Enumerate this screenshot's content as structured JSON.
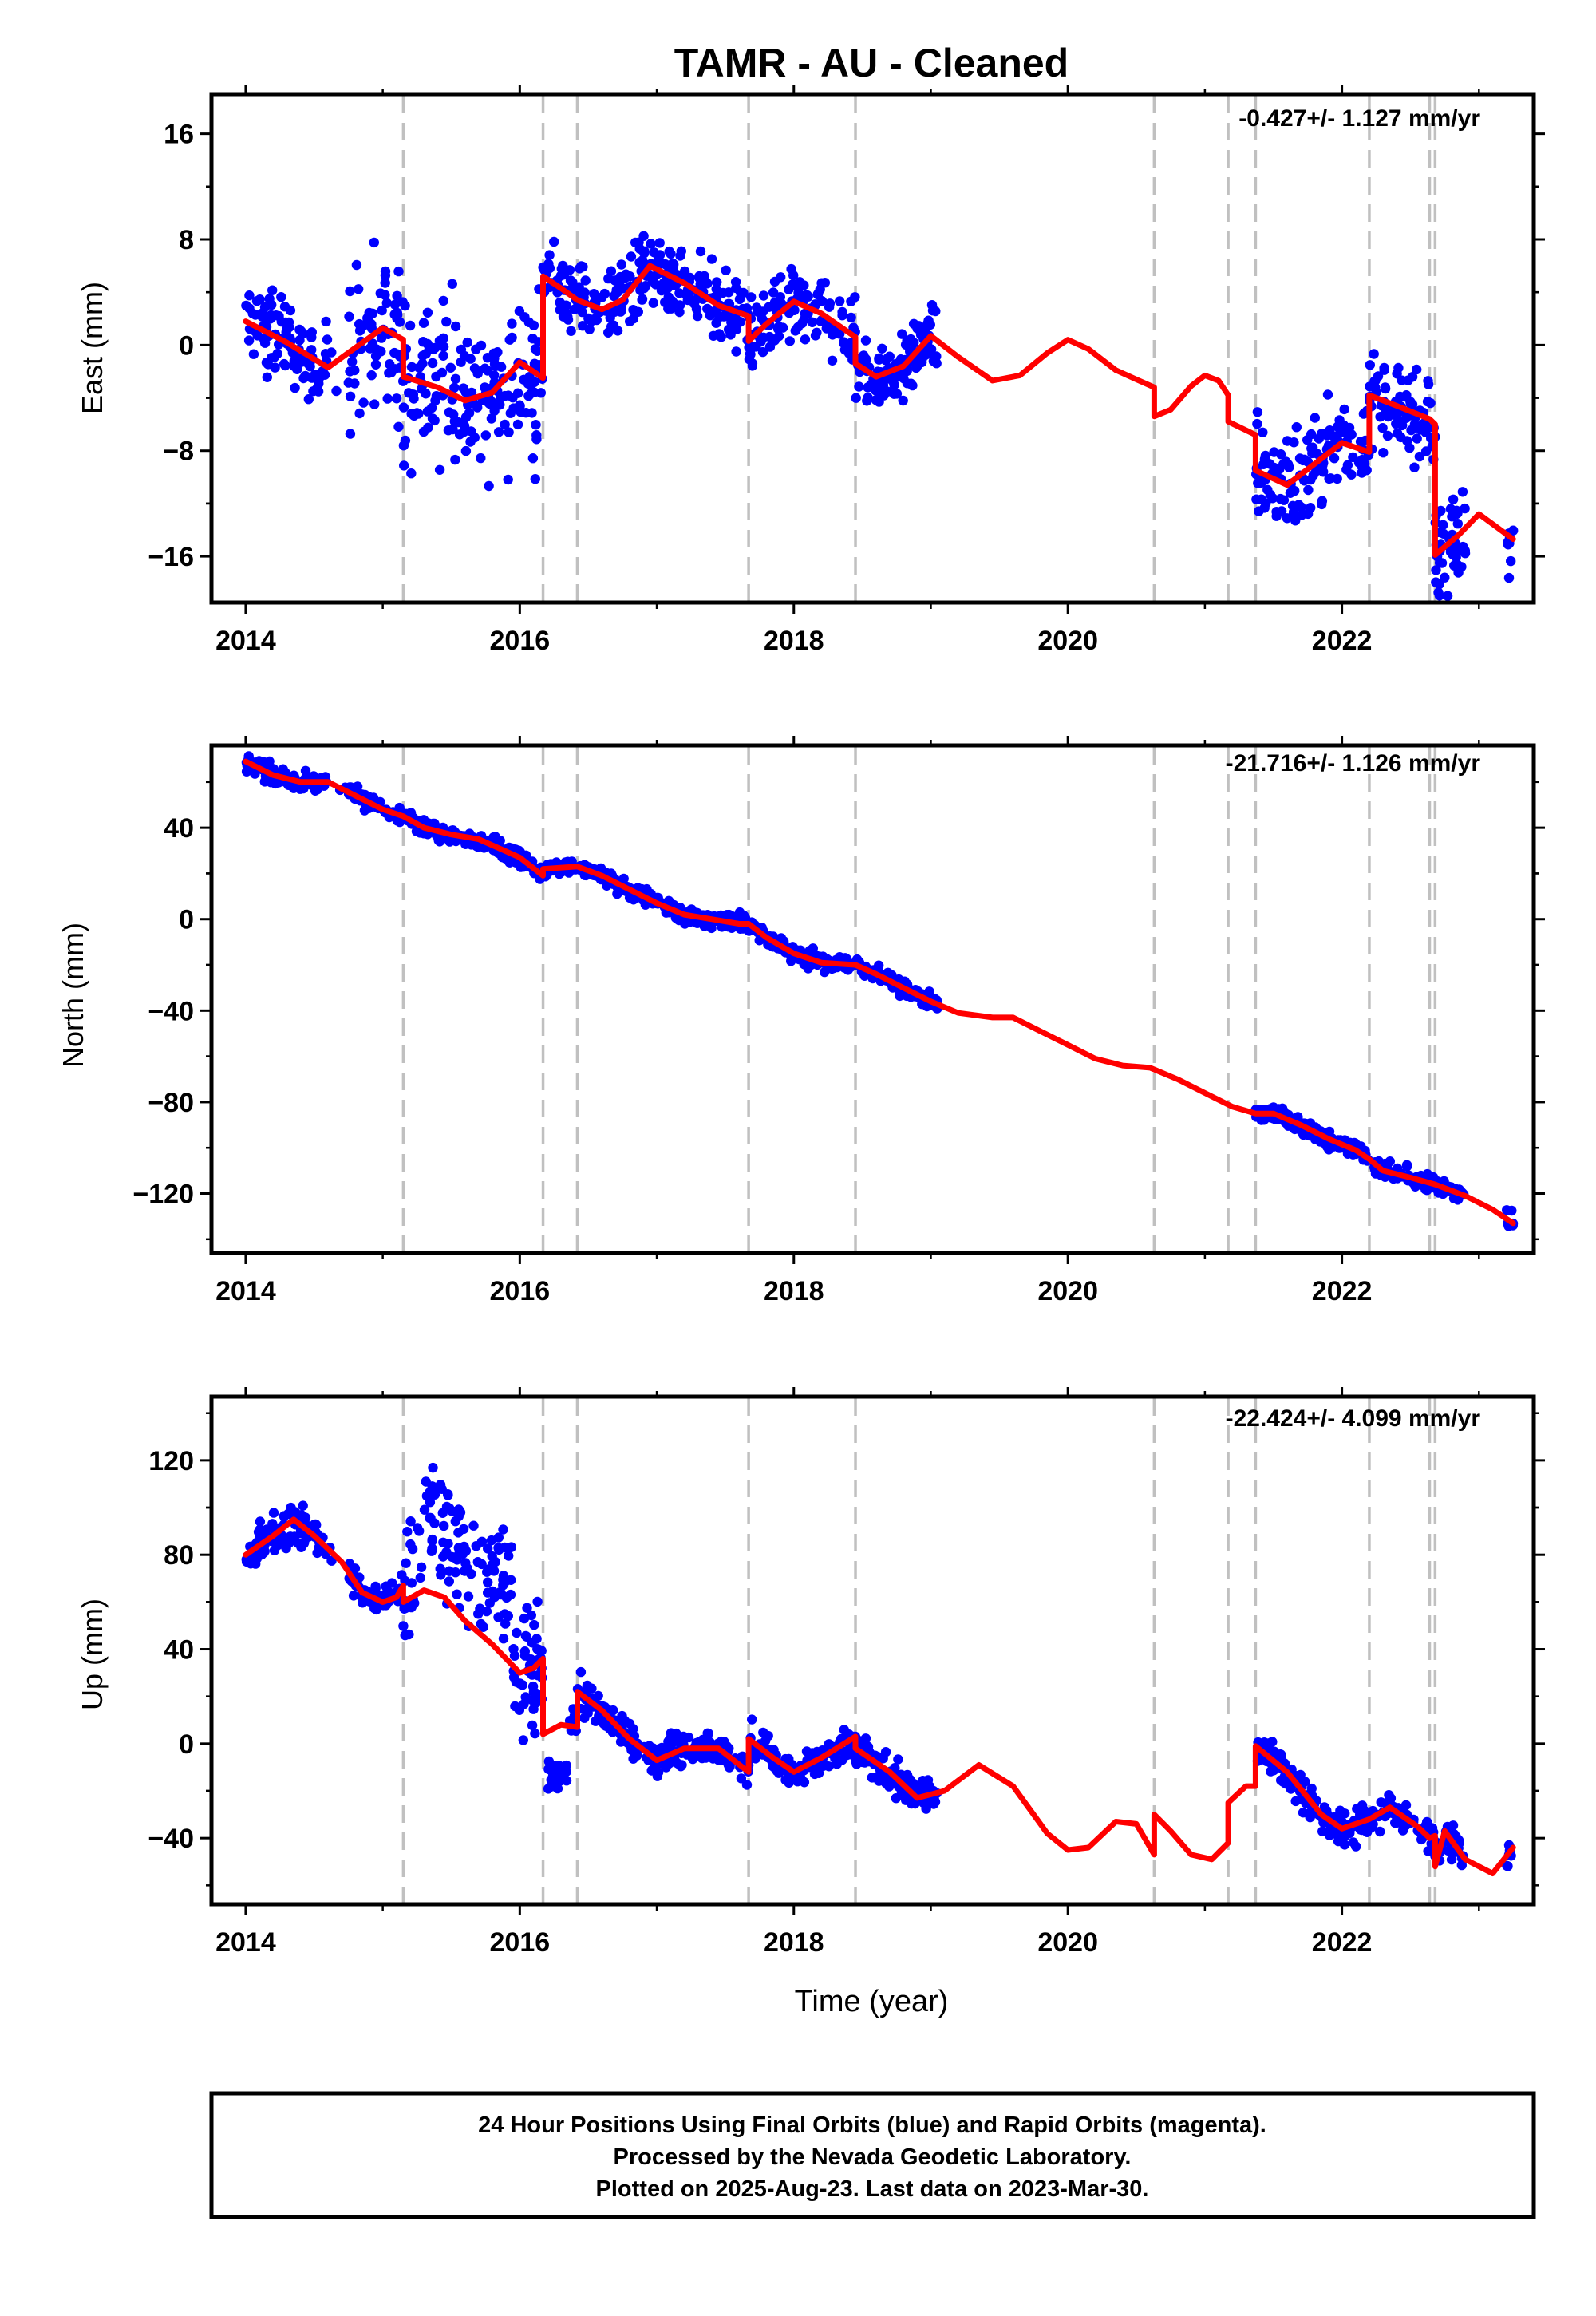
{
  "title": "TAMR  - AU - Cleaned",
  "xlabel": "Time (year)",
  "footer": [
    "24 Hour Positions Using Final Orbits (blue) and Rapid Orbits (magenta).",
    "Processed by the Nevada Geodetic Laboratory.",
    "Plotted on 2025-Aug-23. Last data on 2023-Mar-30."
  ],
  "colors": {
    "points": "#0000ff",
    "model": "#ff0000",
    "steps": "#c0c0c0",
    "frame": "#000000"
  },
  "chart_data": [
    {
      "type": "scatter",
      "panel": "east",
      "ylabel": "East (mm)",
      "rate": "-0.427+/- 1.127 mm/yr",
      "xlim": [
        2013.75,
        2023.4
      ],
      "ylim": [
        -19.5,
        19
      ],
      "xticks": [
        2014,
        2016,
        2018,
        2020,
        2022
      ],
      "yticks": [
        -16,
        -8,
        0,
        8,
        16
      ],
      "ytick_labels": [
        "−16",
        "−8",
        "0",
        "8",
        "16"
      ],
      "grid": false,
      "steps": [
        2015.15,
        2016.17,
        2016.42,
        2017.67,
        2018.45,
        2020.63,
        2021.17,
        2021.37,
        2022.2,
        2022.64,
        2022.68
      ],
      "model": [
        [
          2014.0,
          1.8
        ],
        [
          2014.3,
          0.2
        ],
        [
          2014.6,
          -1.7
        ],
        [
          2014.8,
          -0.2
        ],
        [
          2015.0,
          1.3
        ],
        [
          2015.15,
          0.4
        ],
        [
          2015.15,
          -2.4
        ],
        [
          2015.4,
          -3.2
        ],
        [
          2015.6,
          -4.2
        ],
        [
          2015.8,
          -3.6
        ],
        [
          2016.0,
          -1.3
        ],
        [
          2016.17,
          -2.5
        ],
        [
          2016.17,
          5.2
        ],
        [
          2016.3,
          4.3
        ],
        [
          2016.42,
          3.4
        ],
        [
          2016.6,
          2.7
        ],
        [
          2016.75,
          3.4
        ],
        [
          2016.95,
          6.0
        ],
        [
          2017.2,
          4.7
        ],
        [
          2017.45,
          3.0
        ],
        [
          2017.67,
          2.2
        ],
        [
          2017.67,
          0.3
        ],
        [
          2017.8,
          1.6
        ],
        [
          2018.0,
          3.3
        ],
        [
          2018.2,
          2.4
        ],
        [
          2018.45,
          0.6
        ],
        [
          2018.45,
          -1.4
        ],
        [
          2018.6,
          -2.4
        ],
        [
          2018.8,
          -1.6
        ],
        [
          2019.0,
          0.7
        ],
        [
          2019.2,
          -0.9
        ],
        [
          2019.45,
          -2.7
        ],
        [
          2019.65,
          -2.3
        ],
        [
          2019.85,
          -0.6
        ],
        [
          2020.0,
          0.4
        ],
        [
          2020.15,
          -0.3
        ],
        [
          2020.35,
          -1.9
        ],
        [
          2020.5,
          -2.6
        ],
        [
          2020.63,
          -3.2
        ],
        [
          2020.63,
          -5.4
        ],
        [
          2020.75,
          -4.9
        ],
        [
          2020.9,
          -3.1
        ],
        [
          2021.0,
          -2.3
        ],
        [
          2021.1,
          -2.7
        ],
        [
          2021.17,
          -3.8
        ],
        [
          2021.17,
          -5.8
        ],
        [
          2021.37,
          -6.8
        ],
        [
          2021.37,
          -9.5
        ],
        [
          2021.6,
          -10.6
        ],
        [
          2021.8,
          -9.0
        ],
        [
          2022.0,
          -7.4
        ],
        [
          2022.2,
          -8.1
        ],
        [
          2022.2,
          -3.8
        ],
        [
          2022.4,
          -4.6
        ],
        [
          2022.64,
          -5.6
        ],
        [
          2022.68,
          -6.0
        ],
        [
          2022.68,
          -15.9
        ],
        [
          2022.85,
          -14.4
        ],
        [
          2023.0,
          -12.8
        ],
        [
          2023.25,
          -14.7
        ]
      ]
    },
    {
      "type": "scatter",
      "panel": "north",
      "ylabel": "North (mm)",
      "rate": "-21.716+/- 1.126 mm/yr",
      "xlim": [
        2013.75,
        2023.4
      ],
      "ylim": [
        -146,
        76
      ],
      "xticks": [
        2014,
        2016,
        2018,
        2020,
        2022
      ],
      "yticks": [
        -120,
        -80,
        -40,
        0,
        40
      ],
      "ytick_labels": [
        "−120",
        "−80",
        "−40",
        "0",
        "40"
      ],
      "grid": false,
      "steps": [
        2015.15,
        2016.17,
        2016.42,
        2017.67,
        2018.45,
        2020.63,
        2021.17,
        2021.37,
        2022.2,
        2022.64,
        2022.68
      ],
      "model": [
        [
          2014.0,
          69
        ],
        [
          2014.2,
          63
        ],
        [
          2014.4,
          60
        ],
        [
          2014.6,
          60
        ],
        [
          2014.8,
          54
        ],
        [
          2015.0,
          48
        ],
        [
          2015.15,
          45
        ],
        [
          2015.3,
          40
        ],
        [
          2015.5,
          37
        ],
        [
          2015.7,
          35
        ],
        [
          2016.0,
          27
        ],
        [
          2016.17,
          19
        ],
        [
          2016.17,
          22
        ],
        [
          2016.42,
          23
        ],
        [
          2016.6,
          19
        ],
        [
          2016.8,
          13
        ],
        [
          2017.0,
          7
        ],
        [
          2017.2,
          2
        ],
        [
          2017.4,
          0
        ],
        [
          2017.6,
          -2
        ],
        [
          2017.67,
          -2
        ],
        [
          2017.8,
          -8
        ],
        [
          2018.0,
          -15
        ],
        [
          2018.2,
          -19
        ],
        [
          2018.45,
          -20
        ],
        [
          2018.6,
          -24
        ],
        [
          2018.8,
          -30
        ],
        [
          2019.0,
          -36
        ],
        [
          2019.2,
          -41
        ],
        [
          2019.45,
          -43
        ],
        [
          2019.6,
          -43
        ],
        [
          2019.8,
          -49
        ],
        [
          2020.0,
          -55
        ],
        [
          2020.2,
          -61
        ],
        [
          2020.4,
          -64
        ],
        [
          2020.6,
          -65
        ],
        [
          2020.8,
          -70
        ],
        [
          2021.0,
          -76
        ],
        [
          2021.2,
          -82
        ],
        [
          2021.37,
          -85
        ],
        [
          2021.5,
          -85
        ],
        [
          2021.7,
          -90
        ],
        [
          2021.9,
          -96
        ],
        [
          2022.1,
          -101
        ],
        [
          2022.2,
          -105
        ],
        [
          2022.3,
          -110
        ],
        [
          2022.5,
          -113
        ],
        [
          2022.68,
          -116
        ],
        [
          2022.9,
          -121
        ],
        [
          2023.1,
          -127
        ],
        [
          2023.25,
          -133
        ]
      ]
    },
    {
      "type": "scatter",
      "panel": "up",
      "ylabel": "Up (mm)",
      "rate": "-22.424+/- 4.099 mm/yr",
      "xlim": [
        2013.75,
        2023.4
      ],
      "ylim": [
        -68,
        147
      ],
      "xticks": [
        2014,
        2016,
        2018,
        2020,
        2022
      ],
      "yticks": [
        -40,
        0,
        40,
        80,
        120
      ],
      "ytick_labels": [
        "−40",
        "0",
        "40",
        "80",
        "120"
      ],
      "grid": false,
      "steps": [
        2015.15,
        2016.17,
        2016.42,
        2017.67,
        2018.45,
        2020.63,
        2021.17,
        2021.37,
        2022.2,
        2022.64,
        2022.68
      ],
      "model": [
        [
          2014.0,
          80
        ],
        [
          2014.2,
          88
        ],
        [
          2014.35,
          95
        ],
        [
          2014.5,
          88
        ],
        [
          2014.7,
          77
        ],
        [
          2014.85,
          64
        ],
        [
          2015.0,
          60
        ],
        [
          2015.1,
          62
        ],
        [
          2015.15,
          67
        ],
        [
          2015.15,
          60
        ],
        [
          2015.3,
          65
        ],
        [
          2015.45,
          62
        ],
        [
          2015.6,
          52
        ],
        [
          2015.8,
          42
        ],
        [
          2016.0,
          30
        ],
        [
          2016.1,
          32
        ],
        [
          2016.17,
          36
        ],
        [
          2016.17,
          4
        ],
        [
          2016.3,
          8
        ],
        [
          2016.42,
          7
        ],
        [
          2016.42,
          22
        ],
        [
          2016.6,
          14
        ],
        [
          2016.8,
          2
        ],
        [
          2017.0,
          -7
        ],
        [
          2017.2,
          -2
        ],
        [
          2017.45,
          -2
        ],
        [
          2017.67,
          -12
        ],
        [
          2017.67,
          2
        ],
        [
          2017.85,
          -6
        ],
        [
          2018.0,
          -12
        ],
        [
          2018.2,
          -6
        ],
        [
          2018.45,
          3
        ],
        [
          2018.45,
          -2
        ],
        [
          2018.7,
          -12
        ],
        [
          2018.9,
          -23
        ],
        [
          2019.1,
          -20
        ],
        [
          2019.35,
          -9
        ],
        [
          2019.6,
          -18
        ],
        [
          2019.85,
          -38
        ],
        [
          2020.0,
          -45
        ],
        [
          2020.15,
          -44
        ],
        [
          2020.35,
          -33
        ],
        [
          2020.5,
          -34
        ],
        [
          2020.63,
          -47
        ],
        [
          2020.63,
          -30
        ],
        [
          2020.75,
          -37
        ],
        [
          2020.9,
          -47
        ],
        [
          2021.05,
          -49
        ],
        [
          2021.17,
          -42
        ],
        [
          2021.17,
          -25
        ],
        [
          2021.3,
          -18
        ],
        [
          2021.37,
          -18
        ],
        [
          2021.37,
          -1
        ],
        [
          2021.6,
          -12
        ],
        [
          2021.85,
          -30
        ],
        [
          2022.0,
          -36
        ],
        [
          2022.2,
          -32
        ],
        [
          2022.35,
          -27
        ],
        [
          2022.55,
          -35
        ],
        [
          2022.64,
          -40
        ],
        [
          2022.68,
          -39
        ],
        [
          2022.68,
          -52
        ],
        [
          2022.75,
          -37
        ],
        [
          2022.9,
          -49
        ],
        [
          2023.1,
          -55
        ],
        [
          2023.25,
          -44
        ]
      ]
    }
  ]
}
